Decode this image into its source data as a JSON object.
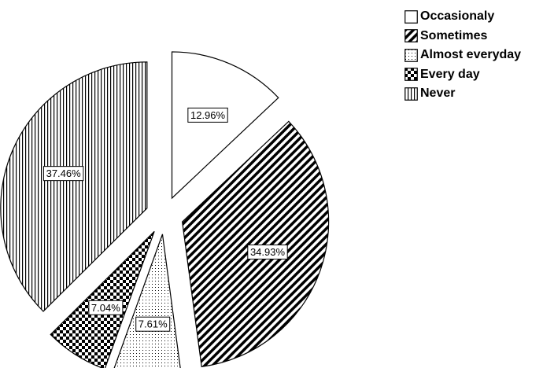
{
  "chart_data": {
    "type": "pie",
    "categories": [
      "Occasionaly",
      "Sometimes",
      "Almost everyday",
      "Every day",
      "Never"
    ],
    "values": [
      12.96,
      34.93,
      7.61,
      7.04,
      37.46
    ],
    "labels": [
      "12.96%",
      "34.93%",
      "7.61%",
      "7.04%",
      "37.46%"
    ],
    "patterns": [
      "white",
      "diagonal-hatch",
      "dots",
      "checkerboard",
      "vertical-lines"
    ],
    "exploded": true,
    "legend": "top-right"
  }
}
